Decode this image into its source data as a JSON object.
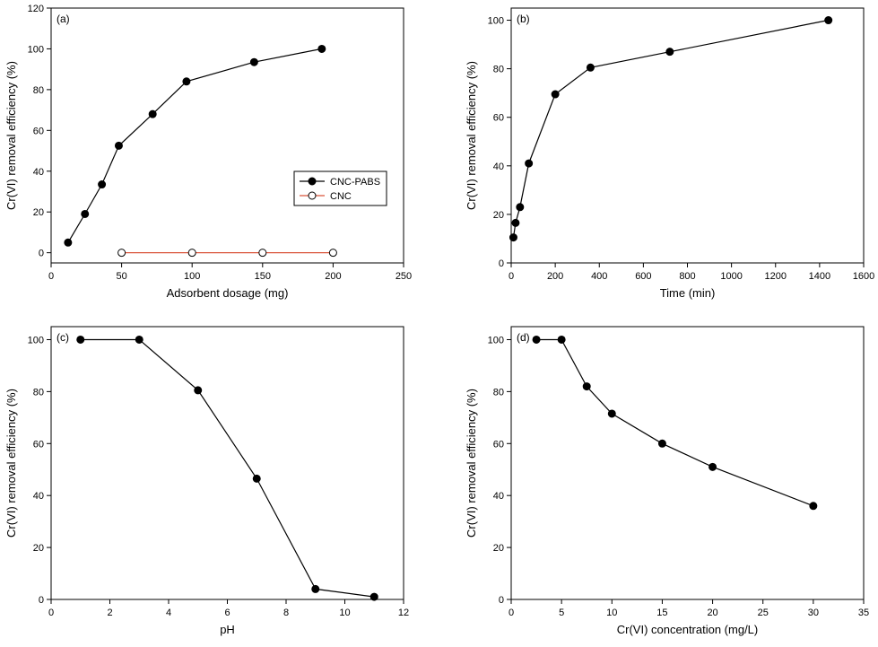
{
  "chart_data": [
    {
      "type": "line",
      "panel_label": "(a)",
      "xlabel": "Adsorbent dosage (mg)",
      "ylabel": "Cr(VI) removal efficiency (%)",
      "xlim": [
        0,
        250
      ],
      "ylim": [
        -5,
        120
      ],
      "xticks": [
        0,
        50,
        100,
        150,
        200,
        250
      ],
      "yticks": [
        0,
        20,
        40,
        60,
        80,
        100,
        120
      ],
      "grid": false,
      "legend_position": "center-right",
      "series": [
        {
          "name": "CNC-PABS",
          "marker": "filled-circle",
          "color": "#000000",
          "x": [
            12,
            24,
            36,
            48,
            72,
            96,
            144,
            192
          ],
          "y": [
            5,
            19,
            33.5,
            52.5,
            68,
            84,
            93.5,
            100
          ]
        },
        {
          "name": "CNC",
          "marker": "open-circle",
          "color": "#d9553a",
          "x": [
            50,
            100,
            150,
            200
          ],
          "y": [
            0,
            0,
            0,
            0
          ]
        }
      ]
    },
    {
      "type": "line",
      "panel_label": "(b)",
      "xlabel": "Time (min)",
      "ylabel": "Cr(VI) removal efficiency (%)",
      "xlim": [
        0,
        1600
      ],
      "ylim": [
        0,
        105
      ],
      "xticks": [
        0,
        200,
        400,
        600,
        800,
        1000,
        1200,
        1400,
        1600
      ],
      "yticks": [
        0,
        20,
        40,
        60,
        80,
        100
      ],
      "grid": false,
      "series": [
        {
          "marker": "filled-circle",
          "color": "#000000",
          "x": [
            10,
            20,
            40,
            80,
            200,
            360,
            720,
            1440
          ],
          "y": [
            10.5,
            16.5,
            23,
            41,
            69.5,
            80.5,
            87,
            100
          ]
        }
      ]
    },
    {
      "type": "line",
      "panel_label": "(c)",
      "xlabel": "pH",
      "ylabel": "Cr(VI) removal efficiency (%)",
      "xlim": [
        0,
        12
      ],
      "ylim": [
        0,
        105
      ],
      "xticks": [
        0,
        2,
        4,
        6,
        8,
        10,
        12
      ],
      "yticks": [
        0,
        20,
        40,
        60,
        80,
        100
      ],
      "grid": false,
      "series": [
        {
          "marker": "filled-circle",
          "color": "#000000",
          "x": [
            1,
            3,
            5,
            7,
            9,
            11
          ],
          "y": [
            100,
            100,
            80.5,
            46.5,
            4,
            1
          ]
        }
      ]
    },
    {
      "type": "line",
      "panel_label": "(d)",
      "xlabel": "Cr(VI) concentration (mg/L)",
      "ylabel": "Cr(VI) removal efficiency (%)",
      "xlim": [
        0,
        35
      ],
      "ylim": [
        0,
        105
      ],
      "xticks": [
        0,
        5,
        10,
        15,
        20,
        25,
        30,
        35
      ],
      "yticks": [
        0,
        20,
        40,
        60,
        80,
        100
      ],
      "grid": false,
      "series": [
        {
          "marker": "filled-circle",
          "color": "#000000",
          "x": [
            2.5,
            5,
            7.5,
            10,
            15,
            20,
            30
          ],
          "y": [
            100,
            100,
            82,
            71.5,
            60,
            51,
            36
          ]
        }
      ]
    }
  ]
}
